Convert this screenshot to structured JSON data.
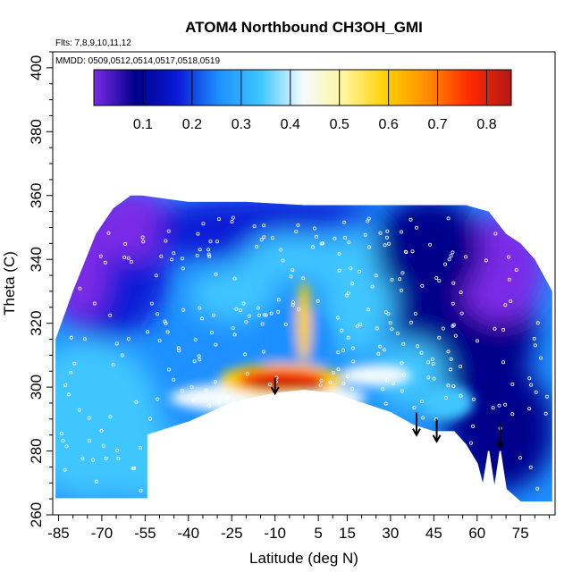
{
  "chart_data": {
    "type": "heatmap",
    "title": "ATOM4 Northbound CH3OH_GMI",
    "notes": {
      "flights": "Flts: 7,8,9,10,11,12",
      "dates": "MMDD: 0509,0512,0514,0517,0518,0519"
    },
    "xlabel": "Latitude (deg N)",
    "ylabel": "Theta (C)",
    "xlim": [
      -87,
      87
    ],
    "ylim": [
      260,
      405
    ],
    "x_ticks": [
      "-85",
      "-70",
      "-55",
      "-40",
      "-25",
      "-10",
      "5",
      "15",
      "30",
      "45",
      "60",
      "75"
    ],
    "y_ticks": [
      "260",
      "280",
      "300",
      "320",
      "340",
      "360",
      "380",
      "400"
    ],
    "colorbar": {
      "range": [
        0.0,
        0.85
      ],
      "tick_labels": [
        "0.1",
        "0.2",
        "0.3",
        "0.4",
        "0.5",
        "0.6",
        "0.7",
        "0.8"
      ],
      "colors": [
        "#7b2be6",
        "#00008b",
        "#0a1ad6",
        "#1e90ff",
        "#3fc6ff",
        "#f5fbff",
        "#fff59a",
        "#ffd000",
        "#ff8c00",
        "#ff2a00",
        "#b01818"
      ]
    },
    "surface_boundary": {
      "lat": [
        -86,
        -54,
        -54,
        -40,
        -25,
        -10,
        0,
        10,
        20,
        30,
        38,
        45,
        52,
        56,
        60,
        62,
        64,
        66,
        68,
        70,
        75,
        86
      ],
      "theta": [
        265,
        265,
        285,
        289,
        295,
        298,
        299,
        298,
        295,
        292,
        288,
        286,
        286,
        282,
        276,
        269,
        280,
        268,
        280,
        268,
        264,
        264
      ]
    },
    "top_boundary": {
      "lat": [
        -86,
        -80,
        -72,
        -66,
        -60,
        -56,
        -40,
        -20,
        0,
        20,
        40,
        56,
        64,
        70,
        75,
        80,
        86
      ],
      "theta": [
        315,
        330,
        348,
        356,
        360,
        360,
        358,
        358,
        357,
        357,
        357,
        357,
        355,
        348,
        345,
        340,
        330
      ]
    },
    "arrows": [
      {
        "lat": -10,
        "theta_top": 303,
        "theta_tip": 298
      },
      {
        "lat": 39,
        "theta_top": 292,
        "theta_tip": 285
      },
      {
        "lat": 46,
        "theta_top": 290,
        "theta_tip": 283
      },
      {
        "lat": 68,
        "theta_top": 289,
        "theta_tip": 281
      }
    ]
  }
}
